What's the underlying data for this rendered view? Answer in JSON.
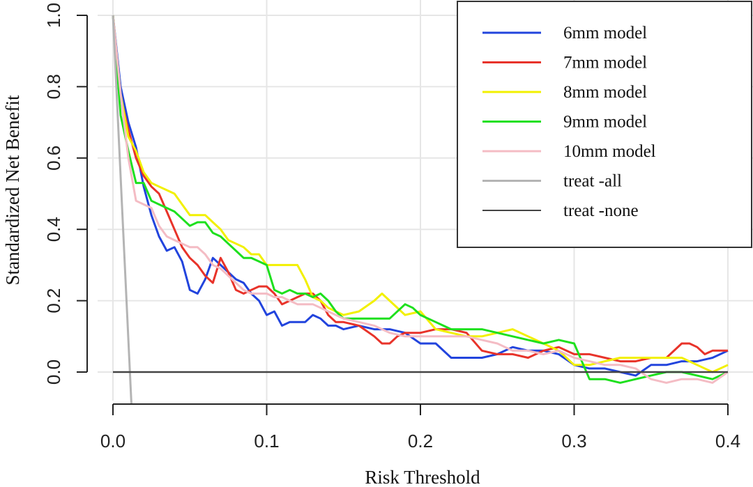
{
  "chart_data": {
    "type": "line",
    "xlabel": "Risk Threshold",
    "ylabel": "Standardized Net Benefit",
    "xlim": [
      0.0,
      0.4
    ],
    "ylim": [
      -0.09,
      1.0
    ],
    "x_ticks": [
      "0.0",
      "0.1",
      "0.2",
      "0.3",
      "0.4"
    ],
    "y_ticks": [
      "0.0",
      "0.2",
      "0.4",
      "0.6",
      "0.8",
      "1.0"
    ],
    "grid": true,
    "legend_position": "top-right",
    "series": [
      {
        "name": "6mm model",
        "color": "#2244dd",
        "x": [
          0.0,
          0.005,
          0.01,
          0.015,
          0.02,
          0.025,
          0.03,
          0.035,
          0.04,
          0.045,
          0.05,
          0.055,
          0.06,
          0.065,
          0.07,
          0.075,
          0.08,
          0.085,
          0.09,
          0.095,
          0.1,
          0.105,
          0.11,
          0.115,
          0.12,
          0.125,
          0.13,
          0.135,
          0.14,
          0.145,
          0.15,
          0.16,
          0.17,
          0.18,
          0.19,
          0.2,
          0.21,
          0.22,
          0.23,
          0.24,
          0.25,
          0.26,
          0.27,
          0.28,
          0.29,
          0.3,
          0.31,
          0.32,
          0.33,
          0.34,
          0.35,
          0.36,
          0.37,
          0.38,
          0.39,
          0.4
        ],
        "y": [
          1.0,
          0.8,
          0.7,
          0.63,
          0.52,
          0.44,
          0.38,
          0.34,
          0.35,
          0.31,
          0.23,
          0.22,
          0.26,
          0.32,
          0.3,
          0.28,
          0.26,
          0.25,
          0.22,
          0.2,
          0.16,
          0.17,
          0.13,
          0.14,
          0.14,
          0.14,
          0.16,
          0.15,
          0.13,
          0.13,
          0.12,
          0.13,
          0.12,
          0.12,
          0.11,
          0.08,
          0.08,
          0.04,
          0.04,
          0.04,
          0.05,
          0.07,
          0.06,
          0.06,
          0.05,
          0.02,
          0.01,
          0.01,
          0.0,
          -0.01,
          0.02,
          0.02,
          0.03,
          0.03,
          0.04,
          0.06
        ]
      },
      {
        "name": "7mm model",
        "color": "#e8332a",
        "x": [
          0.0,
          0.005,
          0.01,
          0.015,
          0.02,
          0.025,
          0.03,
          0.035,
          0.04,
          0.045,
          0.05,
          0.055,
          0.06,
          0.065,
          0.07,
          0.075,
          0.08,
          0.085,
          0.09,
          0.095,
          0.1,
          0.105,
          0.11,
          0.115,
          0.12,
          0.125,
          0.13,
          0.135,
          0.14,
          0.145,
          0.15,
          0.16,
          0.17,
          0.175,
          0.18,
          0.185,
          0.19,
          0.2,
          0.21,
          0.22,
          0.23,
          0.24,
          0.25,
          0.26,
          0.27,
          0.28,
          0.29,
          0.3,
          0.31,
          0.32,
          0.33,
          0.34,
          0.35,
          0.36,
          0.37,
          0.375,
          0.38,
          0.385,
          0.39,
          0.4
        ],
        "y": [
          1.0,
          0.77,
          0.68,
          0.6,
          0.55,
          0.52,
          0.5,
          0.45,
          0.4,
          0.35,
          0.32,
          0.3,
          0.27,
          0.25,
          0.32,
          0.28,
          0.23,
          0.22,
          0.23,
          0.24,
          0.24,
          0.22,
          0.19,
          0.2,
          0.21,
          0.22,
          0.22,
          0.2,
          0.16,
          0.14,
          0.14,
          0.13,
          0.1,
          0.08,
          0.08,
          0.1,
          0.11,
          0.11,
          0.12,
          0.12,
          0.11,
          0.06,
          0.05,
          0.05,
          0.04,
          0.06,
          0.07,
          0.05,
          0.05,
          0.04,
          0.03,
          0.03,
          0.04,
          0.04,
          0.08,
          0.08,
          0.07,
          0.05,
          0.06,
          0.06
        ]
      },
      {
        "name": "8mm model",
        "color": "#f2f000",
        "x": [
          0.0,
          0.005,
          0.01,
          0.015,
          0.02,
          0.025,
          0.03,
          0.035,
          0.04,
          0.045,
          0.05,
          0.055,
          0.06,
          0.065,
          0.07,
          0.075,
          0.08,
          0.085,
          0.09,
          0.095,
          0.1,
          0.105,
          0.11,
          0.115,
          0.12,
          0.125,
          0.13,
          0.135,
          0.14,
          0.145,
          0.15,
          0.16,
          0.17,
          0.175,
          0.18,
          0.19,
          0.2,
          0.21,
          0.22,
          0.23,
          0.24,
          0.25,
          0.26,
          0.27,
          0.28,
          0.29,
          0.3,
          0.31,
          0.32,
          0.33,
          0.34,
          0.35,
          0.36,
          0.37,
          0.38,
          0.39,
          0.4
        ],
        "y": [
          1.0,
          0.78,
          0.66,
          0.62,
          0.56,
          0.53,
          0.52,
          0.51,
          0.5,
          0.47,
          0.44,
          0.44,
          0.44,
          0.42,
          0.4,
          0.37,
          0.36,
          0.35,
          0.33,
          0.33,
          0.3,
          0.3,
          0.3,
          0.3,
          0.3,
          0.26,
          0.21,
          0.2,
          0.18,
          0.17,
          0.16,
          0.17,
          0.2,
          0.22,
          0.2,
          0.16,
          0.17,
          0.12,
          0.11,
          0.1,
          0.1,
          0.11,
          0.12,
          0.1,
          0.08,
          0.06,
          0.02,
          0.02,
          0.03,
          0.04,
          0.04,
          0.04,
          0.04,
          0.04,
          0.02,
          0.0,
          0.02
        ]
      },
      {
        "name": "9mm model",
        "color": "#1ee01e",
        "x": [
          0.0,
          0.005,
          0.01,
          0.015,
          0.02,
          0.025,
          0.03,
          0.035,
          0.04,
          0.045,
          0.05,
          0.055,
          0.06,
          0.065,
          0.07,
          0.075,
          0.08,
          0.085,
          0.09,
          0.095,
          0.1,
          0.105,
          0.11,
          0.115,
          0.12,
          0.125,
          0.13,
          0.135,
          0.14,
          0.145,
          0.15,
          0.16,
          0.17,
          0.18,
          0.19,
          0.195,
          0.2,
          0.21,
          0.22,
          0.23,
          0.24,
          0.25,
          0.26,
          0.27,
          0.28,
          0.29,
          0.3,
          0.31,
          0.32,
          0.33,
          0.34,
          0.35,
          0.36,
          0.37,
          0.38,
          0.39,
          0.4
        ],
        "y": [
          1.0,
          0.72,
          0.62,
          0.53,
          0.53,
          0.48,
          0.47,
          0.46,
          0.45,
          0.43,
          0.41,
          0.42,
          0.42,
          0.39,
          0.38,
          0.36,
          0.34,
          0.32,
          0.32,
          0.31,
          0.3,
          0.23,
          0.22,
          0.23,
          0.22,
          0.22,
          0.21,
          0.22,
          0.2,
          0.17,
          0.15,
          0.15,
          0.15,
          0.15,
          0.19,
          0.18,
          0.16,
          0.14,
          0.12,
          0.12,
          0.12,
          0.11,
          0.1,
          0.09,
          0.08,
          0.09,
          0.08,
          -0.02,
          -0.02,
          -0.03,
          -0.02,
          -0.01,
          0.0,
          0.0,
          -0.01,
          -0.02,
          0.0
        ]
      },
      {
        "name": "10mm model",
        "color": "#f4bcc4",
        "x": [
          0.0,
          0.005,
          0.01,
          0.015,
          0.02,
          0.025,
          0.03,
          0.035,
          0.04,
          0.045,
          0.05,
          0.055,
          0.06,
          0.065,
          0.07,
          0.075,
          0.08,
          0.085,
          0.09,
          0.095,
          0.1,
          0.105,
          0.11,
          0.115,
          0.12,
          0.125,
          0.13,
          0.135,
          0.14,
          0.145,
          0.15,
          0.16,
          0.17,
          0.18,
          0.19,
          0.2,
          0.21,
          0.22,
          0.23,
          0.24,
          0.25,
          0.26,
          0.27,
          0.28,
          0.29,
          0.3,
          0.31,
          0.32,
          0.33,
          0.34,
          0.35,
          0.36,
          0.37,
          0.38,
          0.39,
          0.4
        ],
        "y": [
          1.0,
          0.78,
          0.6,
          0.48,
          0.47,
          0.46,
          0.41,
          0.38,
          0.37,
          0.36,
          0.35,
          0.35,
          0.33,
          0.3,
          0.29,
          0.27,
          0.25,
          0.23,
          0.22,
          0.22,
          0.22,
          0.21,
          0.21,
          0.2,
          0.19,
          0.19,
          0.19,
          0.18,
          0.17,
          0.16,
          0.15,
          0.14,
          0.13,
          0.11,
          0.1,
          0.1,
          0.1,
          0.1,
          0.1,
          0.09,
          0.08,
          0.06,
          0.06,
          0.05,
          0.06,
          0.04,
          0.03,
          0.02,
          0.02,
          0.01,
          -0.02,
          -0.03,
          -0.02,
          -0.02,
          -0.03,
          0.0
        ]
      },
      {
        "name": "treat -all",
        "color": "#b4b4b4",
        "x": [
          0.0,
          0.012
        ],
        "y": [
          1.0,
          -0.09
        ]
      },
      {
        "name": "treat -none",
        "color": "#444444",
        "x": [
          0.0,
          0.4
        ],
        "y": [
          0.0,
          0.0
        ]
      }
    ]
  }
}
